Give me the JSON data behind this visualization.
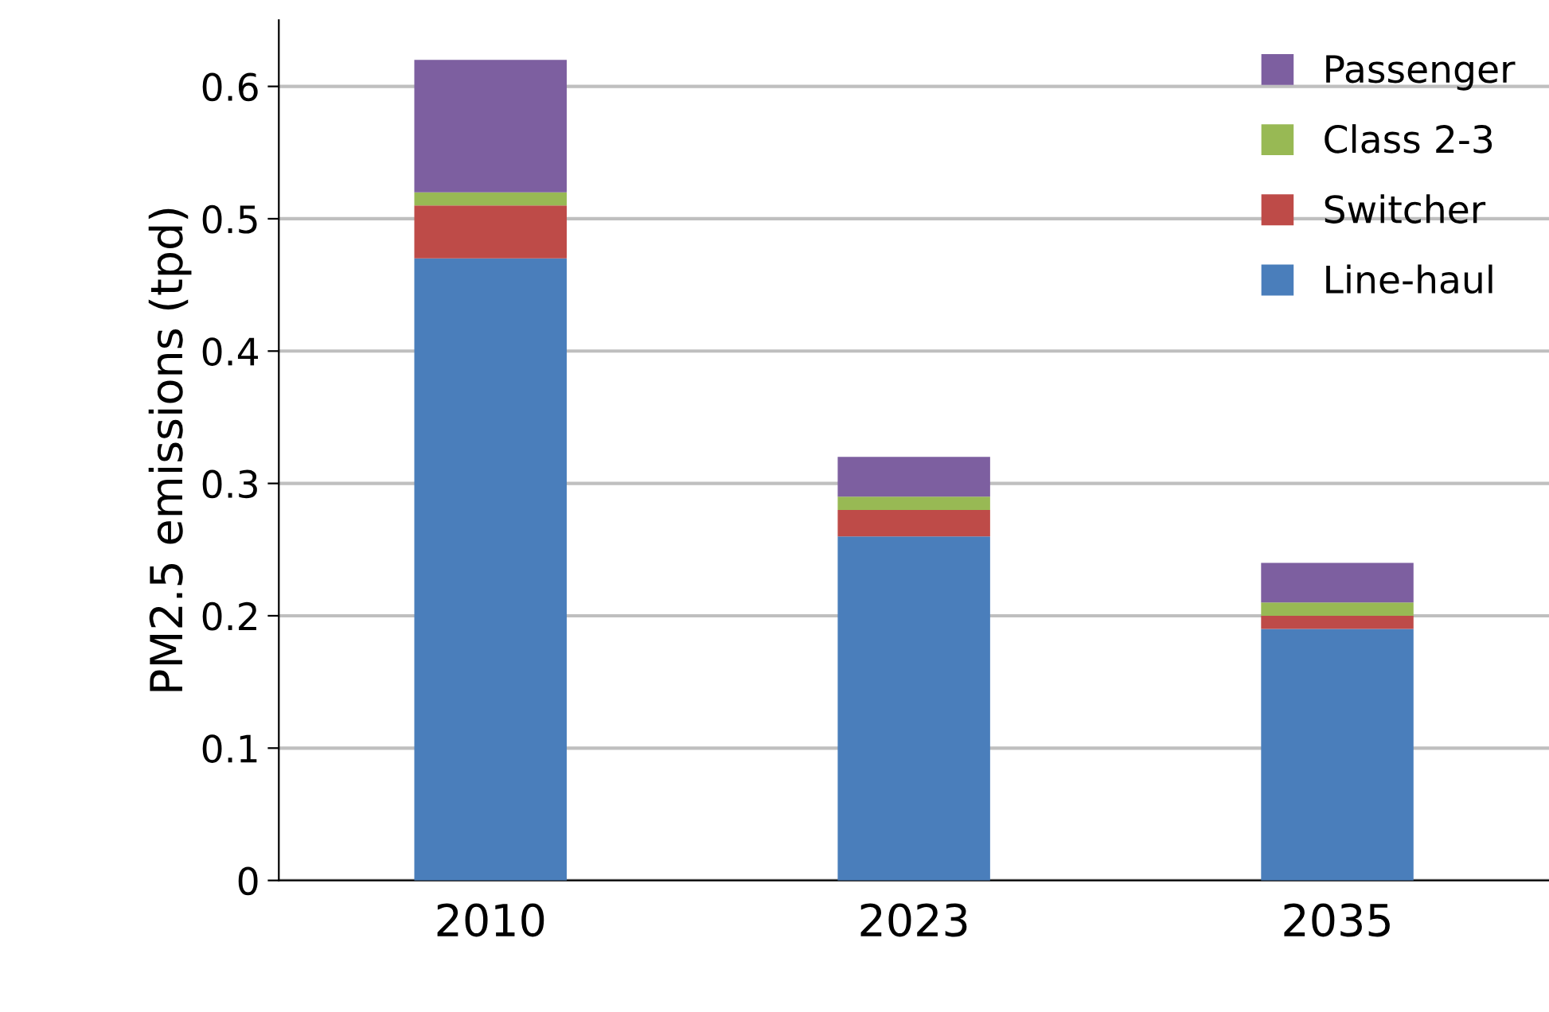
{
  "chart_data": {
    "type": "bar",
    "stacked": true,
    "ylabel": "PM2.5 emissions (tpd)",
    "categories": [
      "2010",
      "2023",
      "2035"
    ],
    "series": [
      {
        "name": "Line-haul",
        "color": "#4a7ebb",
        "values": [
          0.47,
          0.26,
          0.19
        ]
      },
      {
        "name": "Switcher",
        "color": "#be4b48",
        "values": [
          0.04,
          0.02,
          0.01
        ]
      },
      {
        "name": "Class 2-3",
        "color": "#98b954",
        "values": [
          0.01,
          0.01,
          0.01
        ]
      },
      {
        "name": "Passenger",
        "color": "#7d5fa0",
        "values": [
          0.1,
          0.03,
          0.03
        ]
      }
    ],
    "ylim": [
      0,
      0.65
    ],
    "yticks": [
      {
        "value": 0,
        "label": "0"
      },
      0.1,
      0.2,
      0.3,
      0.4,
      0.5,
      0.6
    ],
    "grid": "y",
    "legend": "top right"
  }
}
